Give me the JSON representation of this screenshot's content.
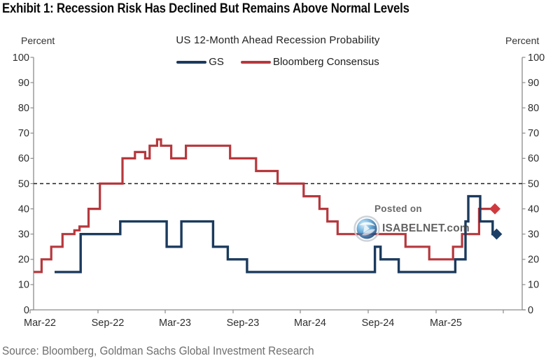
{
  "header": {
    "title": "Exhibit 1: Recession Risk Has Declined But Remains Above Normal Levels"
  },
  "chart": {
    "subtitle": "US 12-Month Ahead Recession Probability",
    "axis_label_left": "Percent",
    "axis_label_right": "Percent",
    "legend": [
      {
        "label": "GS",
        "color": "#1b3a5d"
      },
      {
        "label": "Bloomberg Consensus",
        "color": "#b6383d"
      }
    ]
  },
  "chart_data": {
    "type": "line",
    "style": "step",
    "title": "US 12-Month Ahead Recession Probability",
    "ylabel": "Percent",
    "ylim": [
      0,
      100
    ],
    "y_ticks": [
      100,
      90,
      80,
      70,
      60,
      50,
      40,
      30,
      20,
      10,
      0
    ],
    "x_tick_labels": [
      "Mar-22",
      "Sep-22",
      "Mar-23",
      "Sep-23",
      "Mar-24",
      "Sep-24",
      "Mar-25"
    ],
    "t_definition": "t = months after Mar-2022 (0 = Mar-22); values are recession probability in percent",
    "threshold_line": 50,
    "grid": false,
    "legend_position": "top",
    "series": [
      {
        "name": "Bloomberg Consensus",
        "color": "#b6383d",
        "marker_color": "#cf3a3f",
        "width": 3.2,
        "steps_t_value": [
          [
            -0.55,
            15
          ],
          [
            0.15,
            20
          ],
          [
            1.0,
            25
          ],
          [
            2.0,
            30
          ],
          [
            3.05,
            31.5
          ],
          [
            3.5,
            33
          ],
          [
            4.3,
            40
          ],
          [
            5.3,
            50
          ],
          [
            7.3,
            60
          ],
          [
            8.4,
            62.5
          ],
          [
            9.3,
            60
          ],
          [
            9.7,
            65
          ],
          [
            10.35,
            67.5
          ],
          [
            10.7,
            65
          ],
          [
            11.6,
            60
          ],
          [
            12.9,
            65
          ],
          [
            16.8,
            60
          ],
          [
            19.1,
            55
          ],
          [
            21.0,
            50
          ],
          [
            23.3,
            45
          ],
          [
            24.7,
            40
          ],
          [
            25.4,
            35
          ],
          [
            26.3,
            30
          ],
          [
            32.3,
            25
          ],
          [
            34.4,
            20
          ],
          [
            36.5,
            25
          ],
          [
            37.3,
            30
          ],
          [
            38.8,
            40
          ],
          [
            40.2,
            40
          ]
        ],
        "latest": {
          "t": 40.2,
          "value": 40
        }
      },
      {
        "name": "GS",
        "color": "#1b3a5d",
        "marker_color": "#1c3f66",
        "width": 3.4,
        "steps_t_value": [
          [
            1.3,
            15
          ],
          [
            3.6,
            30
          ],
          [
            7.1,
            35
          ],
          [
            11.2,
            25
          ],
          [
            12.5,
            35
          ],
          [
            15.3,
            25
          ],
          [
            16.6,
            20
          ],
          [
            18.3,
            15
          ],
          [
            29.6,
            25
          ],
          [
            30.1,
            20
          ],
          [
            31.7,
            15
          ],
          [
            36.7,
            20
          ],
          [
            37.6,
            35
          ],
          [
            37.85,
            45
          ],
          [
            38.9,
            35
          ],
          [
            40.0,
            30
          ],
          [
            40.35,
            30
          ]
        ],
        "latest": {
          "t": 40.35,
          "value": 30
        }
      }
    ]
  },
  "watermark": {
    "line1": "Posted on",
    "line2": "ISABELNET.com"
  },
  "footer": {
    "source": "Source: Bloomberg, Goldman Sachs Global Investment Research"
  }
}
